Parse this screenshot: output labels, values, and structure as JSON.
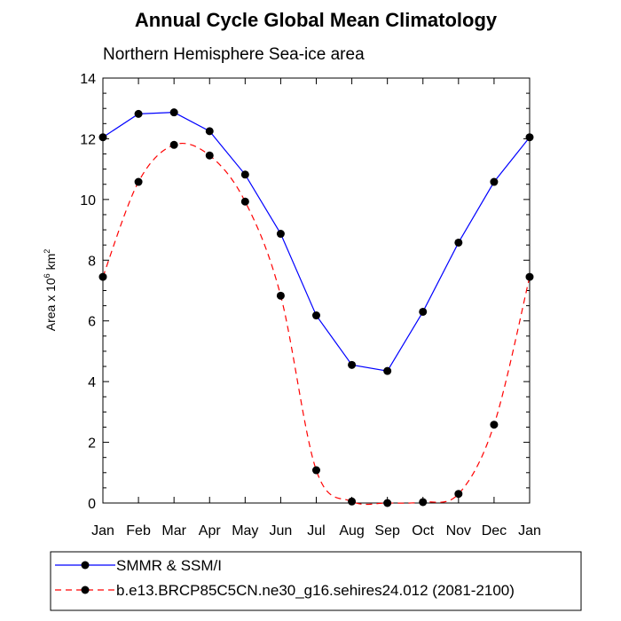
{
  "chart_data": {
    "type": "line",
    "title": "Annual Cycle Global Mean Climatology",
    "subtitle": "Northern Hemisphere Sea-ice area",
    "ylabel": {
      "prefix": "Area x 10",
      "exp1": "6",
      "unit": " km",
      "exp2": "2"
    },
    "xlabel": "",
    "categories": [
      "Jan",
      "Feb",
      "Mar",
      "Apr",
      "May",
      "Jun",
      "Jul",
      "Aug",
      "Sep",
      "Oct",
      "Nov",
      "Dec",
      "Jan"
    ],
    "ylim": [
      0,
      14
    ],
    "yticks": [
      0,
      2,
      4,
      6,
      8,
      10,
      12,
      14
    ],
    "grid": false,
    "legend_position": "bottom",
    "series": [
      {
        "name": "SMMR & SSM/I",
        "color": "#0000ff",
        "style": "solid",
        "marker": "filled-circle",
        "values": [
          12.05,
          12.82,
          12.87,
          12.25,
          10.82,
          8.87,
          6.18,
          4.55,
          4.35,
          6.3,
          8.58,
          10.58,
          12.05
        ]
      },
      {
        "name": "b.e13.BRCP85C5CN.ne30_g16.sehires24.012 (2081-2100)",
        "color": "#ff0000",
        "style": "dashed",
        "marker": "filled-circle",
        "values": [
          7.45,
          10.58,
          11.8,
          11.45,
          9.93,
          6.83,
          1.08,
          0.05,
          0.0,
          0.03,
          0.3,
          2.58,
          7.45
        ]
      }
    ]
  }
}
